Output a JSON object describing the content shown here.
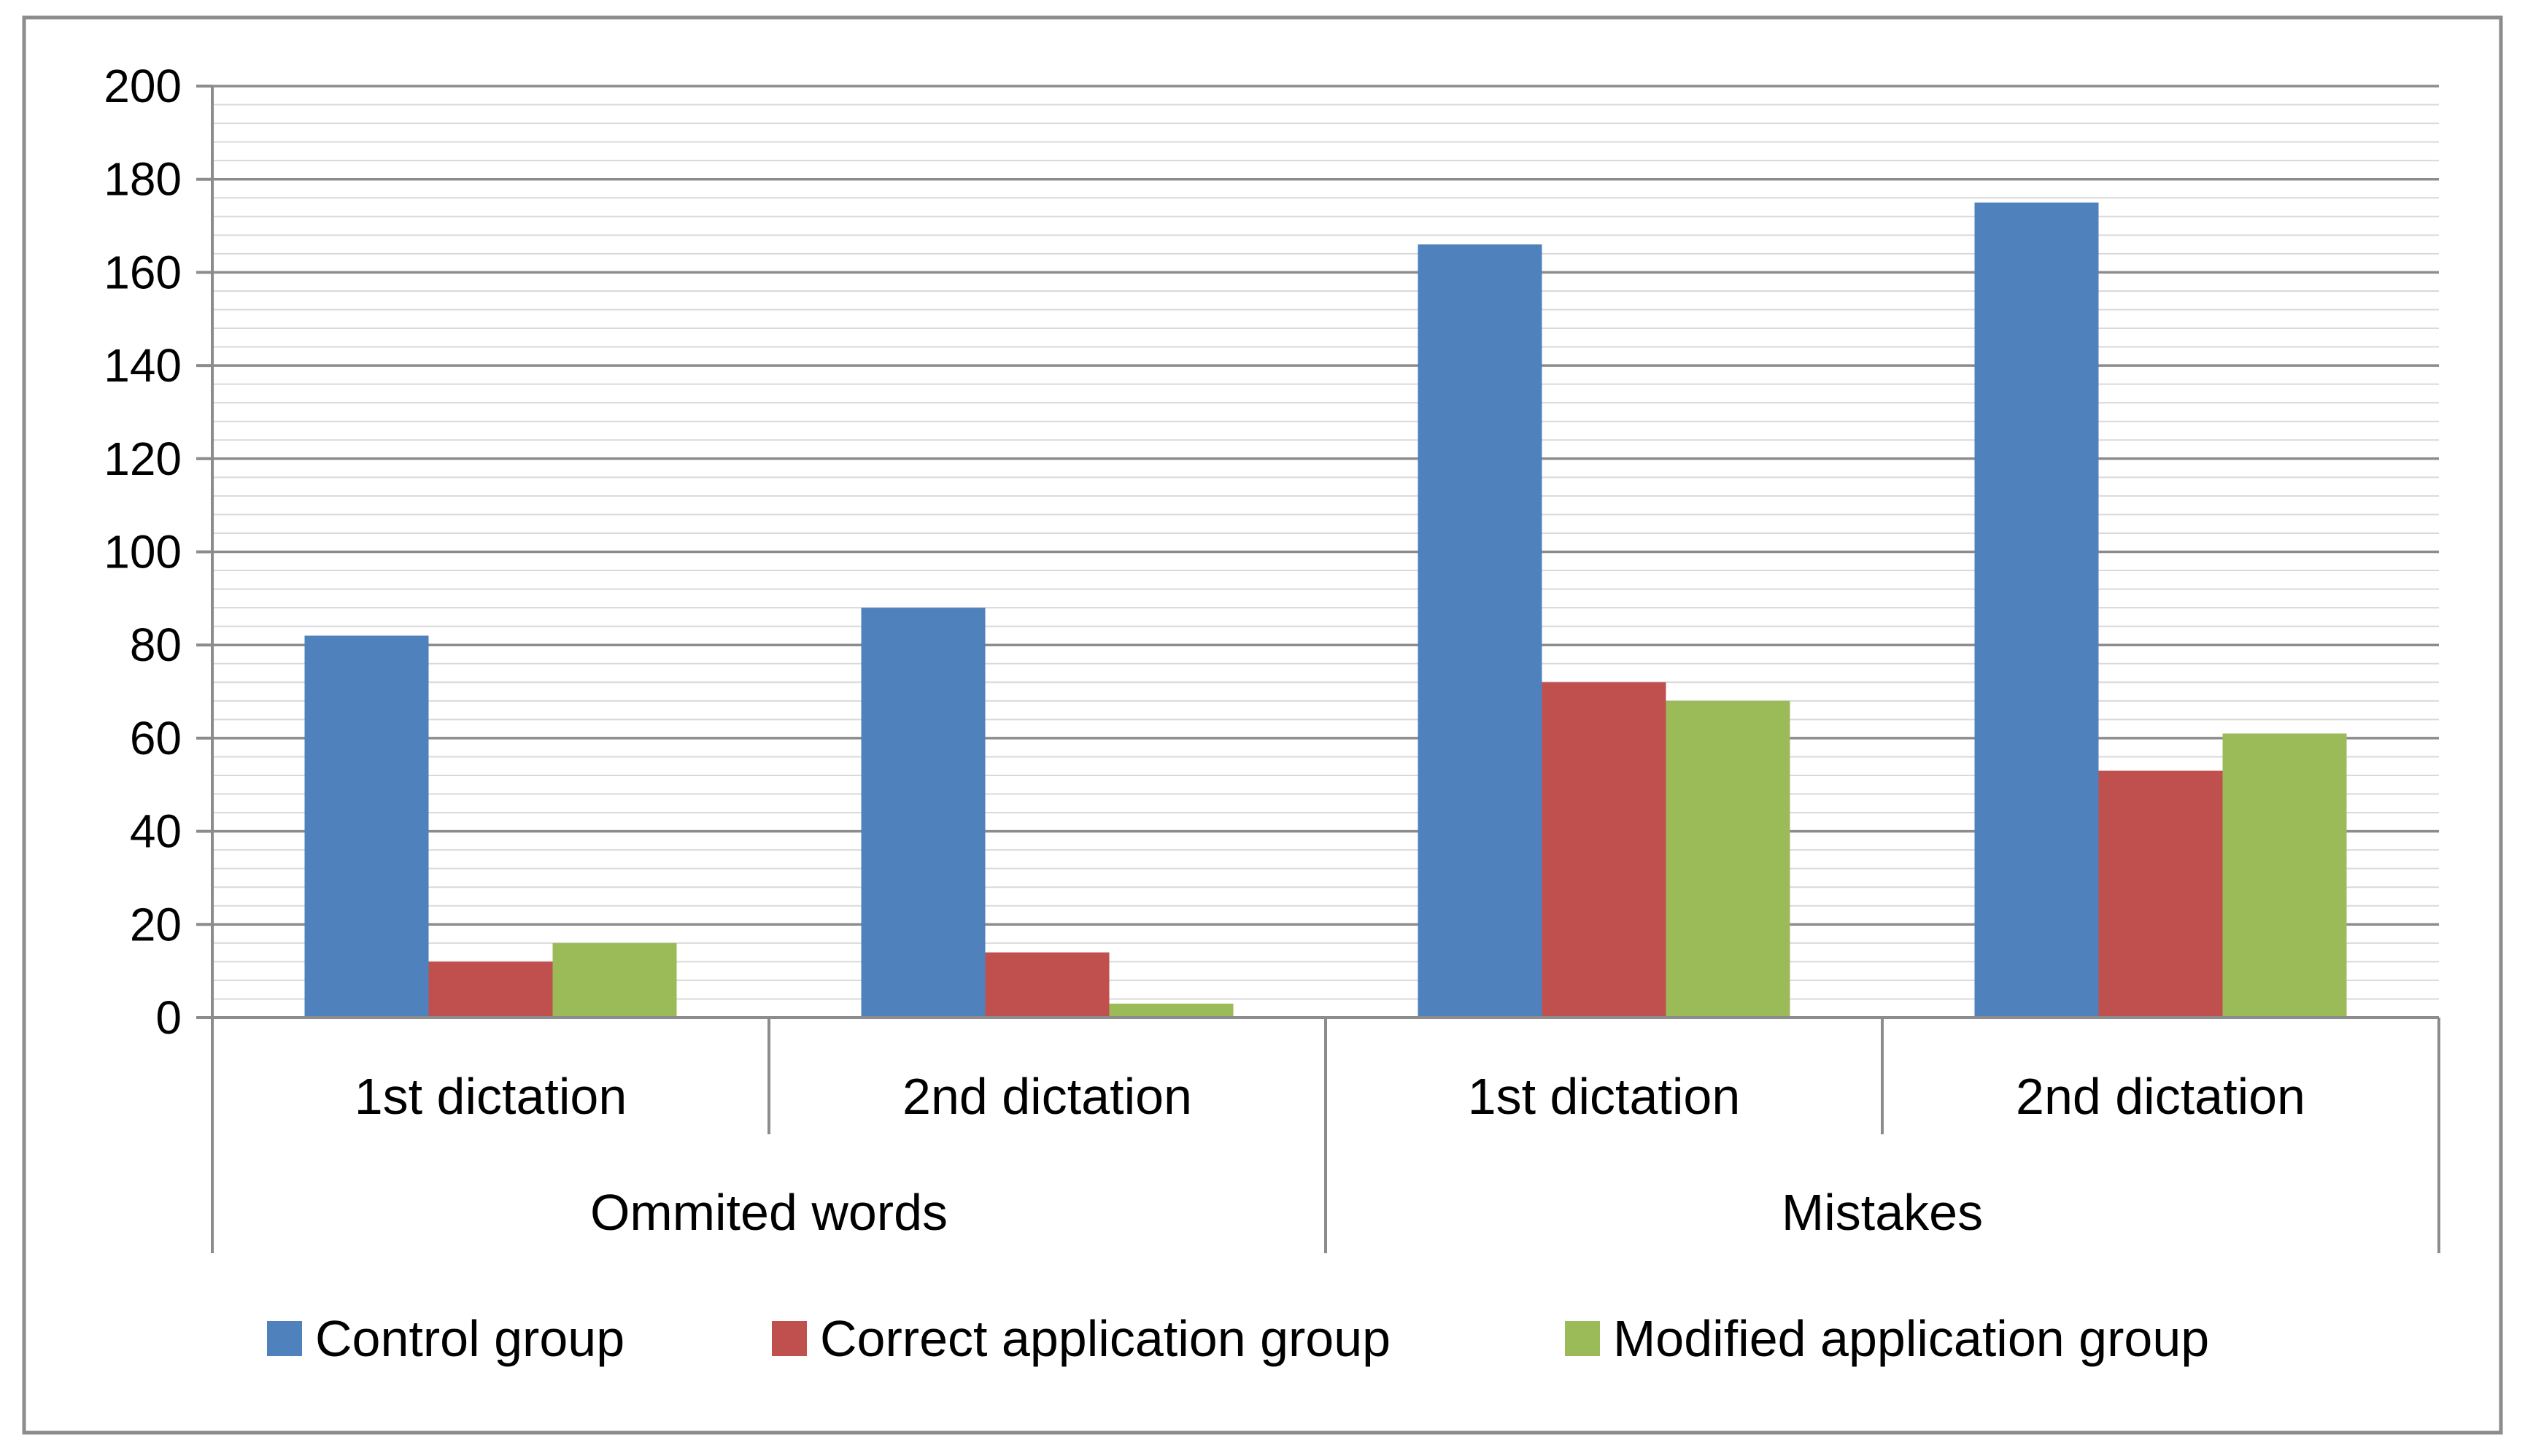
{
  "chart_data": {
    "type": "bar",
    "title": "",
    "xlabel": "",
    "ylabel": "",
    "ylim": [
      0,
      200
    ],
    "y_ticks": [
      "0",
      "20",
      "40",
      "60",
      "80",
      "100",
      "120",
      "140",
      "160",
      "180",
      "200"
    ],
    "categories": [
      "1st dictation",
      "2nd dictation",
      "1st dictation",
      "2nd dictation"
    ],
    "category_groups": [
      {
        "label": "Ommited words",
        "span": 2
      },
      {
        "label": "Mistakes",
        "span": 2
      }
    ],
    "series": [
      {
        "name": "Control group",
        "color": "#4f81bd",
        "values": [
          82,
          88,
          166,
          175
        ]
      },
      {
        "name": "Correct application group",
        "color": "#c0504d",
        "values": [
          12,
          14,
          72,
          53
        ]
      },
      {
        "name": "Modified application group",
        "color": "#9bbb59",
        "values": [
          16,
          3,
          68,
          61
        ]
      }
    ],
    "grid": true,
    "legend_position": "bottom"
  }
}
